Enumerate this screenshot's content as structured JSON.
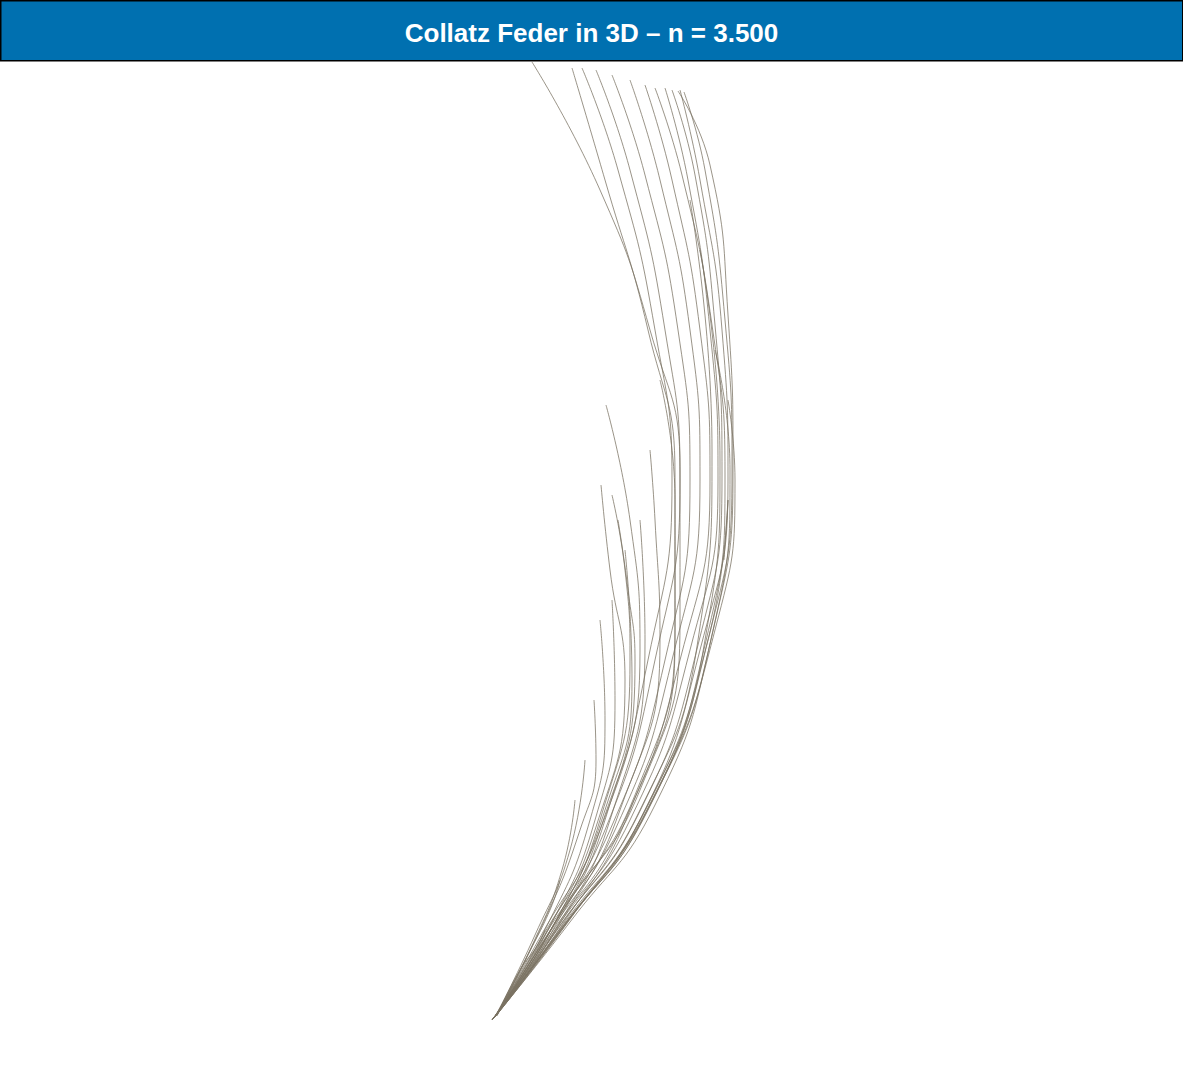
{
  "chart_data": {
    "type": "line",
    "title": "Collatz Feder in 3D – n = 3.500",
    "color": "#7a7262",
    "xlim": [
      0,
      1183
    ],
    "ylim": [
      61,
      1086
    ],
    "grid": false,
    "tick_labels": false,
    "series": [
      {
        "x": [
          492,
          560,
          640,
          700,
          728,
          722,
          700,
          680
        ],
        "values": [
          1020,
          930,
          820,
          650,
          480,
          330,
          180,
          90
        ]
      },
      {
        "x": [
          492,
          565,
          648,
          708,
          732,
          725,
          705,
          684
        ],
        "values": [
          1020,
          925,
          810,
          640,
          470,
          320,
          170,
          92
        ]
      },
      {
        "x": [
          494,
          555,
          630,
          690,
          718,
          710,
          688,
          665
        ],
        "values": [
          1018,
          930,
          820,
          650,
          480,
          330,
          180,
          88
        ]
      },
      {
        "x": [
          494,
          550,
          620,
          680,
          710,
          700,
          672,
          645
        ],
        "values": [
          1018,
          935,
          830,
          660,
          480,
          330,
          180,
          85
        ]
      },
      {
        "x": [
          495,
          548,
          615,
          672,
          700,
          690,
          660,
          630
        ],
        "values": [
          1017,
          935,
          830,
          660,
          480,
          330,
          180,
          80
        ]
      },
      {
        "x": [
          495,
          545,
          610,
          665,
          690,
          678,
          645,
          612
        ],
        "values": [
          1017,
          935,
          830,
          660,
          480,
          330,
          175,
          75
        ]
      },
      {
        "x": [
          496,
          545,
          605,
          655,
          680,
          665,
          630,
          596
        ],
        "values": [
          1016,
          932,
          830,
          660,
          480,
          330,
          170,
          70
        ]
      },
      {
        "x": [
          496,
          543,
          600,
          648,
          672,
          655,
          618,
          582
        ],
        "values": [
          1016,
          932,
          830,
          660,
          480,
          330,
          170,
          68
        ]
      },
      {
        "x": [
          497,
          560,
          640,
          680,
          680,
          650,
          600,
          532
        ],
        "values": [
          1015,
          915,
          790,
          620,
          470,
          330,
          190,
          62
        ]
      },
      {
        "x": [
          497,
          558,
          635,
          675,
          675,
          648,
          605,
          572
        ],
        "values": [
          1015,
          918,
          795,
          625,
          475,
          330,
          180,
          68
        ]
      },
      {
        "x": [
          493,
          562,
          645,
          705,
          725,
          712,
          682,
          655
        ],
        "values": [
          1019,
          928,
          815,
          645,
          475,
          325,
          175,
          88
        ]
      },
      {
        "x": [
          493,
          558,
          638,
          698,
          722,
          715,
          695,
          672
        ],
        "values": [
          1019,
          928,
          815,
          645,
          475,
          325,
          175,
          90
        ]
      },
      {
        "x": [
          493,
          570,
          655,
          712,
          733,
          728,
          710,
          678
        ],
        "values": [
          1019,
          922,
          805,
          635,
          465,
          315,
          165,
          91
        ]
      },
      {
        "x": [
          492,
          545,
          600,
          640,
          630,
          606
        ],
        "values": [
          1020,
          940,
          830,
          650,
          520,
          405
        ]
      },
      {
        "x": [
          492,
          542,
          595,
          625,
          610,
          601
        ],
        "values": [
          1020,
          940,
          830,
          680,
          570,
          485
        ]
      },
      {
        "x": [
          493,
          548,
          600,
          630,
          625,
          612
        ],
        "values": [
          1019,
          935,
          820,
          660,
          570,
          495
        ]
      },
      {
        "x": [
          493,
          550,
          605,
          635,
          628,
          618
        ],
        "values": [
          1019,
          935,
          820,
          660,
          590,
          520
        ]
      },
      {
        "x": [
          494,
          545,
          590,
          605,
          600
        ],
        "values": [
          1018,
          930,
          820,
          720,
          620
        ]
      },
      {
        "x": [
          494,
          548,
          595,
          615,
          612
        ],
        "values": [
          1018,
          930,
          820,
          700,
          600
        ]
      },
      {
        "x": [
          494,
          552,
          605,
          632,
          625
        ],
        "values": [
          1018,
          928,
          810,
          680,
          550
        ]
      },
      {
        "x": [
          495,
          540,
          580,
          596,
          594
        ],
        "values": [
          1017,
          930,
          830,
          760,
          700
        ]
      },
      {
        "x": [
          495,
          535,
          570,
          585
        ],
        "values": [
          1017,
          935,
          850,
          760
        ]
      },
      {
        "x": [
          496,
          530,
          562,
          575
        ],
        "values": [
          1016,
          950,
          870,
          800
        ]
      },
      {
        "x": [
          496,
          525,
          550,
          560
        ],
        "values": [
          1016,
          960,
          910,
          880
        ]
      },
      {
        "x": [
          497,
          520,
          538,
          545
        ],
        "values": [
          1016,
          970,
          945,
          930
        ]
      },
      {
        "x": [
          492,
          552,
          610,
          645,
          640
        ],
        "values": [
          1020,
          935,
          820,
          640,
          520
        ]
      },
      {
        "x": [
          493,
          556,
          620,
          660,
          655,
          650
        ],
        "values": [
          1019,
          930,
          810,
          640,
          520,
          450
        ]
      },
      {
        "x": [
          493,
          560,
          630,
          675,
          675,
          660
        ],
        "values": [
          1019,
          928,
          810,
          640,
          500,
          380
        ]
      },
      {
        "x": [
          494,
          562,
          645,
          705,
          720,
          700
        ],
        "values": [
          1018,
          926,
          810,
          640,
          460,
          250
        ]
      },
      {
        "x": [
          494,
          560,
          640,
          698,
          712,
          690
        ],
        "values": [
          1018,
          926,
          810,
          640,
          450,
          200
        ]
      },
      {
        "x": [
          494,
          565,
          650,
          712,
          730,
          715
        ],
        "values": [
          1018,
          924,
          805,
          635,
          470,
          350
        ]
      },
      {
        "x": [
          495,
          568,
          652,
          715,
          735,
          728
        ],
        "values": [
          1017,
          922,
          800,
          630,
          480,
          400
        ]
      },
      {
        "x": [
          495,
          566,
          648,
          708,
          728,
          724
        ],
        "values": [
          1017,
          924,
          805,
          640,
          500,
          560
        ]
      }
    ]
  }
}
